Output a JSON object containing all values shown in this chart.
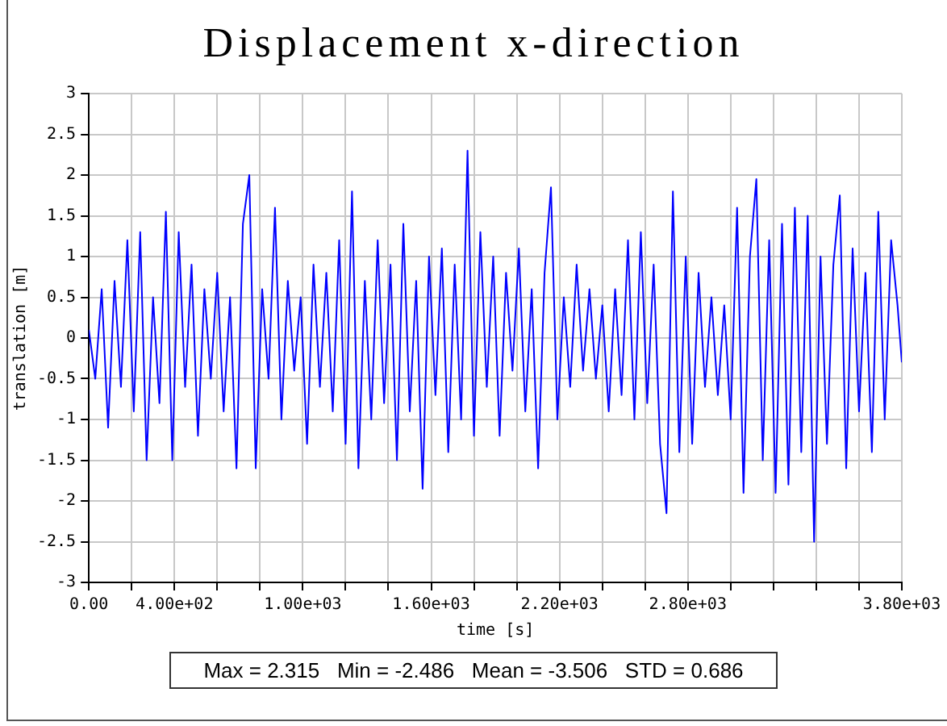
{
  "chart_data": {
    "type": "line",
    "title": "Displacement x-direction",
    "xlabel": "time [s]",
    "ylabel": "translation [m]",
    "x": [
      0,
      30,
      60,
      90,
      120,
      150,
      180,
      210,
      240,
      270,
      300,
      330,
      360,
      390,
      420,
      450,
      480,
      510,
      540,
      570,
      600,
      630,
      660,
      690,
      720,
      750,
      780,
      810,
      840,
      870,
      900,
      930,
      960,
      990,
      1020,
      1050,
      1080,
      1110,
      1140,
      1170,
      1200,
      1230,
      1260,
      1290,
      1320,
      1350,
      1380,
      1410,
      1440,
      1470,
      1500,
      1530,
      1560,
      1590,
      1620,
      1650,
      1680,
      1710,
      1740,
      1770,
      1800,
      1830,
      1860,
      1890,
      1920,
      1950,
      1980,
      2010,
      2040,
      2070,
      2100,
      2130,
      2160,
      2190,
      2220,
      2250,
      2280,
      2310,
      2340,
      2370,
      2400,
      2430,
      2460,
      2490,
      2520,
      2550,
      2580,
      2610,
      2640,
      2670,
      2700,
      2730,
      2760,
      2790,
      2820,
      2850,
      2880,
      2910,
      2940,
      2970,
      3000,
      3030,
      3060,
      3090,
      3120,
      3150,
      3180,
      3210,
      3240,
      3270,
      3300,
      3330,
      3360,
      3390,
      3420,
      3450,
      3480,
      3510,
      3540,
      3570,
      3600,
      3630,
      3660,
      3690,
      3720,
      3750,
      3780,
      3800
    ],
    "series": [
      {
        "color": "#0000ff",
        "values": [
          0.1,
          -0.5,
          0.6,
          -1.1,
          0.7,
          -0.6,
          1.2,
          -0.9,
          1.3,
          -1.5,
          0.5,
          -0.8,
          1.55,
          -1.5,
          1.3,
          -0.6,
          0.9,
          -1.2,
          0.6,
          -0.5,
          0.8,
          -0.9,
          0.5,
          -1.6,
          1.4,
          2.0,
          -1.6,
          0.6,
          -0.5,
          1.6,
          -1.0,
          0.7,
          -0.4,
          0.5,
          -1.3,
          0.9,
          -0.6,
          0.8,
          -0.9,
          1.2,
          -1.3,
          1.8,
          -1.6,
          0.7,
          -1.0,
          1.2,
          -0.8,
          0.9,
          -1.5,
          1.4,
          -0.9,
          0.7,
          -1.85,
          1.0,
          -0.7,
          1.1,
          -1.4,
          0.9,
          -1.0,
          2.3,
          -1.2,
          1.3,
          -0.6,
          1.0,
          -1.2,
          0.8,
          -0.4,
          1.1,
          -0.9,
          0.6,
          -1.6,
          0.8,
          1.85,
          -1.0,
          0.5,
          -0.6,
          0.9,
          -0.4,
          0.6,
          -0.5,
          0.4,
          -0.9,
          0.6,
          -0.7,
          1.2,
          -1.0,
          1.3,
          -0.8,
          0.9,
          -1.3,
          -2.15,
          1.8,
          -1.4,
          1.0,
          -1.3,
          0.8,
          -0.6,
          0.5,
          -0.7,
          0.4,
          -1.0,
          1.6,
          -1.9,
          1.0,
          1.95,
          -1.5,
          1.2,
          -1.9,
          1.4,
          -1.8,
          1.6,
          -1.4,
          1.5,
          -2.5,
          1.0,
          -1.3,
          0.9,
          1.75,
          -1.6,
          1.1,
          -0.9,
          0.8,
          -1.4,
          1.55,
          -1.0,
          1.2,
          0.4,
          -0.3
        ]
      }
    ],
    "xlim": [
      0,
      3800
    ],
    "xticks": [
      {
        "value": 0,
        "label": "0.00"
      },
      {
        "value": 200,
        "label": null
      },
      {
        "value": 400,
        "label": "4.00e+02"
      },
      {
        "value": 600,
        "label": null
      },
      {
        "value": 800,
        "label": null
      },
      {
        "value": 1000,
        "label": "1.00e+03"
      },
      {
        "value": 1200,
        "label": null
      },
      {
        "value": 1400,
        "label": null
      },
      {
        "value": 1600,
        "label": "1.60e+03"
      },
      {
        "value": 1800,
        "label": null
      },
      {
        "value": 2000,
        "label": null
      },
      {
        "value": 2200,
        "label": "2.20e+03"
      },
      {
        "value": 2400,
        "label": null
      },
      {
        "value": 2600,
        "label": null
      },
      {
        "value": 2800,
        "label": "2.80e+03"
      },
      {
        "value": 3000,
        "label": null
      },
      {
        "value": 3200,
        "label": null
      },
      {
        "value": 3400,
        "label": null
      },
      {
        "value": 3600,
        "label": null
      },
      {
        "value": 3800,
        "label": "3.80e+03"
      }
    ],
    "ylim": [
      -3,
      3
    ],
    "yticks": [
      -3,
      -2.5,
      -2,
      -1.5,
      -1,
      -0.5,
      0,
      0.5,
      1,
      1.5,
      2,
      2.5,
      3
    ],
    "grid": true,
    "legend": false,
    "marker": "none",
    "line_style": "solid",
    "annotations": [
      "Max = 2.315   Min = -2.486   Mean = -3.506   STD = 0.686"
    ]
  }
}
